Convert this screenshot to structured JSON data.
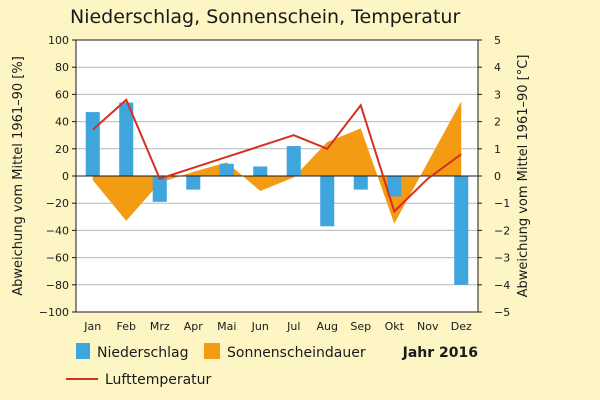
{
  "title": "Niederschlag, Sonnenschein, Temperatur",
  "chart_data": {
    "type": "bar",
    "categories": [
      "Jan",
      "Feb",
      "Mrz",
      "Apr",
      "Mai",
      "Jun",
      "Jul",
      "Aug",
      "Sep",
      "Okt",
      "Nov",
      "Dez"
    ],
    "series": [
      {
        "name": "Niederschlag",
        "kind": "bar",
        "axis": "left",
        "color": "#3fa6dd",
        "values": [
          47,
          54,
          -19,
          -10,
          9,
          7,
          22,
          -37,
          -10,
          -15,
          0,
          -80
        ]
      },
      {
        "name": "Sonnenscheindauer",
        "kind": "area",
        "axis": "left",
        "color": "#f29b13",
        "values": [
          -3,
          -33,
          -5,
          3,
          10,
          -11,
          -1,
          25,
          35,
          -35,
          10,
          55
        ]
      },
      {
        "name": "Lufttemperatur",
        "kind": "line",
        "axis": "right",
        "color": "#d6301f",
        "values": [
          1.7,
          2.8,
          -0.1,
          0.3,
          0.7,
          1.1,
          1.5,
          1.0,
          2.6,
          -1.3,
          -0.1,
          0.8
        ]
      }
    ],
    "ylabel": "Abweichung vom Mittel 1961–90 [%]",
    "y2label": "Abweichung vom Mittel 1961–90 [°C]",
    "ylim": [
      -100,
      100
    ],
    "y2lim": [
      -5,
      5
    ],
    "yticks": [
      -100,
      -80,
      -60,
      -40,
      -20,
      0,
      20,
      40,
      60,
      80,
      100
    ],
    "y2ticks": [
      -5,
      -4,
      -3,
      -2,
      -1,
      0,
      1,
      2,
      3,
      4,
      5
    ],
    "grid": true,
    "legend_position": "bottom",
    "annotation": "Jahr 2016"
  }
}
